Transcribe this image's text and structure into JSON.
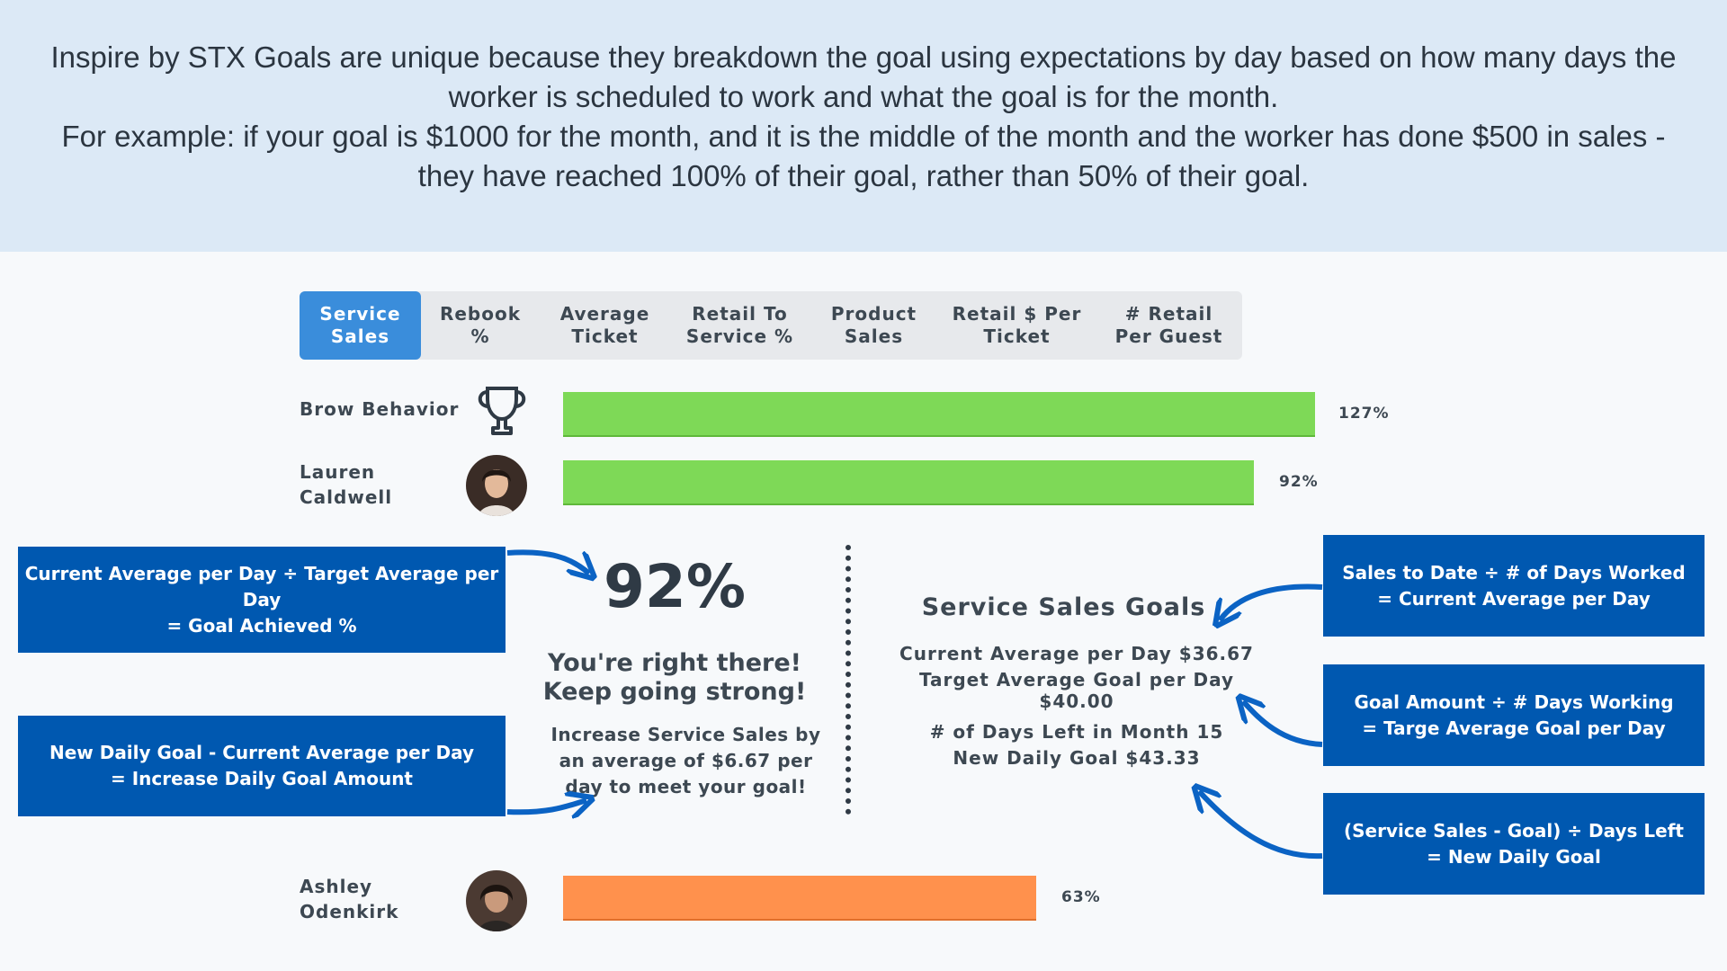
{
  "banner": {
    "line1": "Inspire by STX Goals are unique because they breakdown the goal using expectations by day based on how many days the worker is scheduled to work and what the goal is for the month.",
    "line2": "For example: if your goal is $1000 for the month, and it is the middle of the month and the worker has done $500 in sales - they have reached 100% of their goal, rather than 50% of their goal."
  },
  "tabs": [
    {
      "label": "Service\nSales",
      "active": true
    },
    {
      "label": "Rebook\n%",
      "active": false
    },
    {
      "label": "Average\nTicket",
      "active": false
    },
    {
      "label": "Retail To\nService %",
      "active": false
    },
    {
      "label": "Product\nSales",
      "active": false
    },
    {
      "label": "Retail $ Per\nTicket",
      "active": false
    },
    {
      "label": "# Retail\nPer Guest",
      "active": false
    }
  ],
  "rows": [
    {
      "name": "Brow Behavior",
      "icon": "trophy-icon",
      "percent_label": "127%",
      "percent": 127,
      "color": "#7ed957"
    },
    {
      "name": "Lauren\nCaldwell",
      "icon": "avatar",
      "percent_label": "92%",
      "percent": 92,
      "color": "#7ed957"
    },
    {
      "name": "Ashley\nOdenkirk",
      "icon": "avatar",
      "percent_label": "63%",
      "percent": 63,
      "color": "#ff914d"
    }
  ],
  "detail": {
    "percent": "92%",
    "headline": "You're right there!\nKeep going strong!",
    "increase": "Increase Service Sales by an average of $6.67 per day to meet your goal!",
    "goals_title": "Service Sales Goals",
    "current_avg": "Current Average per Day $36.67",
    "target_avg": "Target Average Goal per Day $40.00",
    "days_left": "# of Days Left in Month 15",
    "new_daily": "New Daily Goal $43.33"
  },
  "callouts": {
    "goal_achieved": "Current Average per Day  ÷ Target Average per Day\n= Goal Achieved %",
    "increase_amount": "New Daily Goal - Current Average per Day\n= Increase Daily Goal Amount",
    "current_avg": "Sales to Date  ÷  # of Days Worked\n= Current Average per Day",
    "target_avg": "Goal Amount ÷ # Days Working\n= Targe Average Goal per Day",
    "new_daily": "(Service Sales - Goal) ÷ Days Left\n= New Daily Goal"
  },
  "colors": {
    "banner": "#dce9f6",
    "accent": "#3a8ddb",
    "callout": "#0058b0",
    "bar_green": "#7ed957",
    "bar_orange": "#ff914d"
  }
}
